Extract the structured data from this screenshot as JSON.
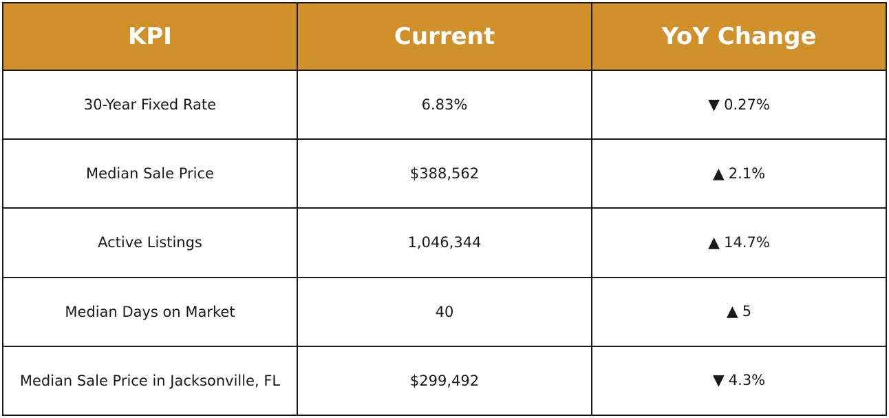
{
  "table": {
    "headers": {
      "kpi": "KPI",
      "current": "Current",
      "yoy": "YoY Change"
    },
    "rows": [
      {
        "kpi": "30-Year Fixed Rate",
        "current": "6.83%",
        "direction": "down",
        "arrow": "▼",
        "change": "0.27%"
      },
      {
        "kpi": "Median Sale Price",
        "current": "$388,562",
        "direction": "up",
        "arrow": "▲",
        "change": "2.1%"
      },
      {
        "kpi": "Active Listings",
        "current": "1,046,344",
        "direction": "up",
        "arrow": "▲",
        "change": "14.7%"
      },
      {
        "kpi": "Median Days on Market",
        "current": "40",
        "direction": "up",
        "arrow": "▲",
        "change": "5"
      },
      {
        "kpi": "Median Sale Price in Jacksonville, FL",
        "current": "$299,492",
        "direction": "down",
        "arrow": "▼",
        "change": "4.3%"
      }
    ]
  },
  "colors": {
    "header_bg": "#d0902a",
    "header_text": "#ffffff",
    "border": "#1a1a1a",
    "body_text": "#1a1a1a"
  }
}
